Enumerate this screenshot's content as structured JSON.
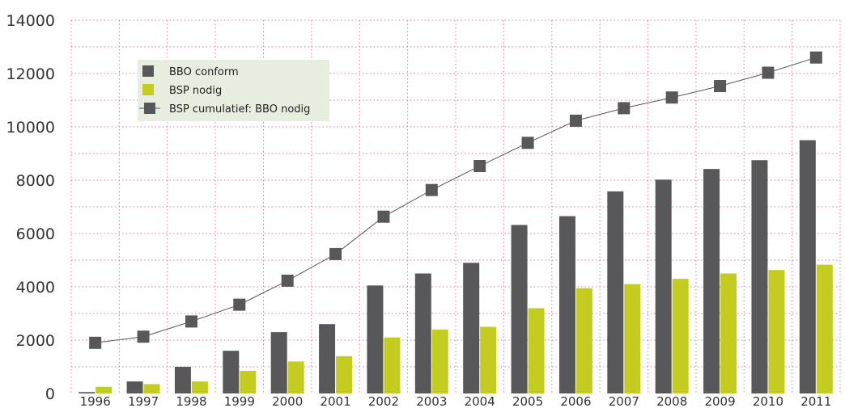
{
  "chart_data": {
    "type": "bar",
    "categories": [
      "1996",
      "1997",
      "1998",
      "1999",
      "2000",
      "2001",
      "2002",
      "2003",
      "2004",
      "2005",
      "2006",
      "2007",
      "2008",
      "2009",
      "2010",
      "2011"
    ],
    "series": [
      {
        "name": "BBO conform",
        "kind": "bar",
        "color": "#58585a",
        "values": [
          50,
          450,
          1000,
          1600,
          2300,
          2600,
          4050,
          4500,
          4900,
          6320,
          6650,
          7580,
          8020,
          8420,
          8750,
          9500
        ]
      },
      {
        "name": "BSP nodig",
        "kind": "bar",
        "color": "#c4cd1f",
        "values": [
          250,
          350,
          450,
          850,
          1200,
          1400,
          2100,
          2400,
          2500,
          3200,
          3950,
          4100,
          4300,
          4500,
          4630,
          4830
        ]
      },
      {
        "name": "BSP cumulatief: BBO nodig",
        "kind": "line",
        "color": "#58585a",
        "values": [
          1900,
          2130,
          2700,
          3330,
          4230,
          5230,
          6630,
          7630,
          8530,
          9400,
          10230,
          10700,
          11100,
          11530,
          12030,
          12600
        ]
      }
    ],
    "yticks": [
      0,
      2000,
      4000,
      6000,
      8000,
      10000,
      12000,
      14000
    ],
    "ylim": [
      0,
      14000
    ],
    "grid": true,
    "legend": "top-left"
  }
}
